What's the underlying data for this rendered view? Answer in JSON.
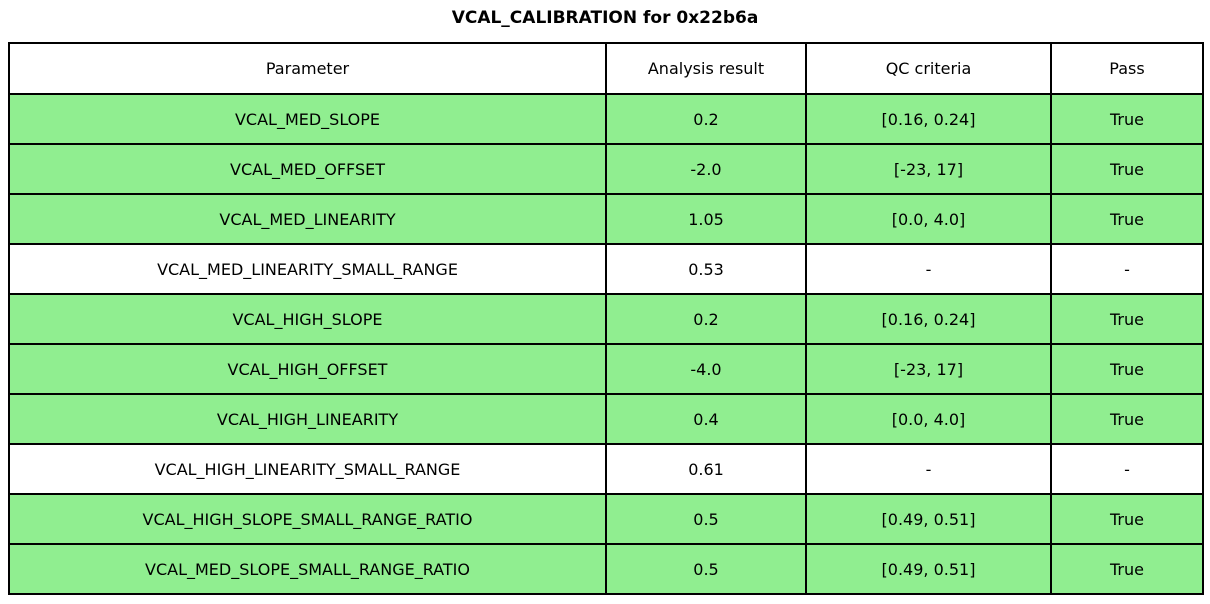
{
  "page_title": "VCAL_CALIBRATION for 0x22b6a",
  "chart_data": {
    "type": "table",
    "title": "VCAL_CALIBRATION for 0x22b6a",
    "columns": [
      "Parameter",
      "Analysis result",
      "QC criteria",
      "Pass"
    ],
    "rows": [
      [
        "VCAL_MED_SLOPE",
        "0.2",
        "[0.16, 0.24]",
        "True"
      ],
      [
        "VCAL_MED_OFFSET",
        "-2.0",
        "[-23, 17]",
        "True"
      ],
      [
        "VCAL_MED_LINEARITY",
        "1.05",
        "[0.0, 4.0]",
        "True"
      ],
      [
        "VCAL_MED_LINEARITY_SMALL_RANGE",
        "0.53",
        "-",
        "-"
      ],
      [
        "VCAL_HIGH_SLOPE",
        "0.2",
        "[0.16, 0.24]",
        "True"
      ],
      [
        "VCAL_HIGH_OFFSET",
        "-4.0",
        "[-23, 17]",
        "True"
      ],
      [
        "VCAL_HIGH_LINEARITY",
        "0.4",
        "[0.0, 4.0]",
        "True"
      ],
      [
        "VCAL_HIGH_LINEARITY_SMALL_RANGE",
        "0.61",
        "-",
        "-"
      ],
      [
        "VCAL_HIGH_SLOPE_SMALL_RANGE_RATIO",
        "0.5",
        "[0.49, 0.51]",
        "True"
      ],
      [
        "VCAL_MED_SLOPE_SMALL_RANGE_RATIO",
        "0.5",
        "[0.49, 0.51]",
        "True"
      ]
    ],
    "row_highlighted": [
      true,
      true,
      true,
      false,
      true,
      true,
      true,
      false,
      true,
      true
    ],
    "legend_position": "none",
    "grid": true
  },
  "colors": {
    "pass_row_bg": "#90ee90",
    "neutral_row_bg": "#ffffff",
    "header_bg": "#ffffff",
    "border": "#000000",
    "text": "#000000"
  }
}
